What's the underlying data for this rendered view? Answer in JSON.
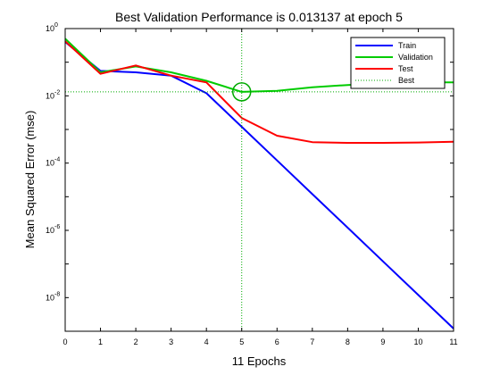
{
  "chart_data": {
    "type": "line",
    "title": "Best Validation Performance is 0.013137 at epoch 5",
    "xlabel": "11 Epochs",
    "ylabel": "Mean Squared Error  (mse)",
    "xlim": [
      0,
      11
    ],
    "ylim": [
      1e-09,
      1
    ],
    "yscale": "log",
    "x_ticks": [
      0,
      1,
      2,
      3,
      4,
      5,
      6,
      7,
      8,
      9,
      10,
      11
    ],
    "y_ticks": [
      {
        "base": "10",
        "exp": "0",
        "value": 1
      },
      {
        "base": "10",
        "exp": "-2",
        "value": 0.01
      },
      {
        "base": "10",
        "exp": "-4",
        "value": 0.0001
      },
      {
        "base": "10",
        "exp": "-6",
        "value": 1e-06
      },
      {
        "base": "10",
        "exp": "-8",
        "value": 1e-08
      }
    ],
    "legend_position": "top-right",
    "series": [
      {
        "name": "Train",
        "color": "#0000ff",
        "x": [
          0,
          1,
          2,
          3,
          4,
          5,
          6,
          7,
          8,
          9,
          10,
          11
        ],
        "y": [
          0.4,
          0.055,
          0.05,
          0.04,
          0.012,
          0.0012,
          0.00012,
          1.2e-05,
          1.2e-06,
          1.2e-07,
          1.2e-08,
          1.2e-09
        ]
      },
      {
        "name": "Validation",
        "color": "#00cc00",
        "x": [
          0,
          1,
          2,
          3,
          4,
          5,
          6,
          7,
          8,
          9,
          10,
          11
        ],
        "y": [
          0.5,
          0.05,
          0.075,
          0.05,
          0.028,
          0.013137,
          0.014,
          0.018,
          0.021,
          0.024,
          0.025,
          0.025
        ]
      },
      {
        "name": "Test",
        "color": "#ff0000",
        "x": [
          0,
          1,
          2,
          3,
          4,
          5,
          6,
          7,
          8,
          9,
          10,
          11
        ],
        "y": [
          0.42,
          0.045,
          0.08,
          0.04,
          0.025,
          0.0022,
          0.00065,
          0.00042,
          0.0004,
          0.0004,
          0.00041,
          0.00043
        ]
      }
    ],
    "best": {
      "name": "Best",
      "color": "#00aa00",
      "epoch": 5,
      "value": 0.013137
    }
  }
}
